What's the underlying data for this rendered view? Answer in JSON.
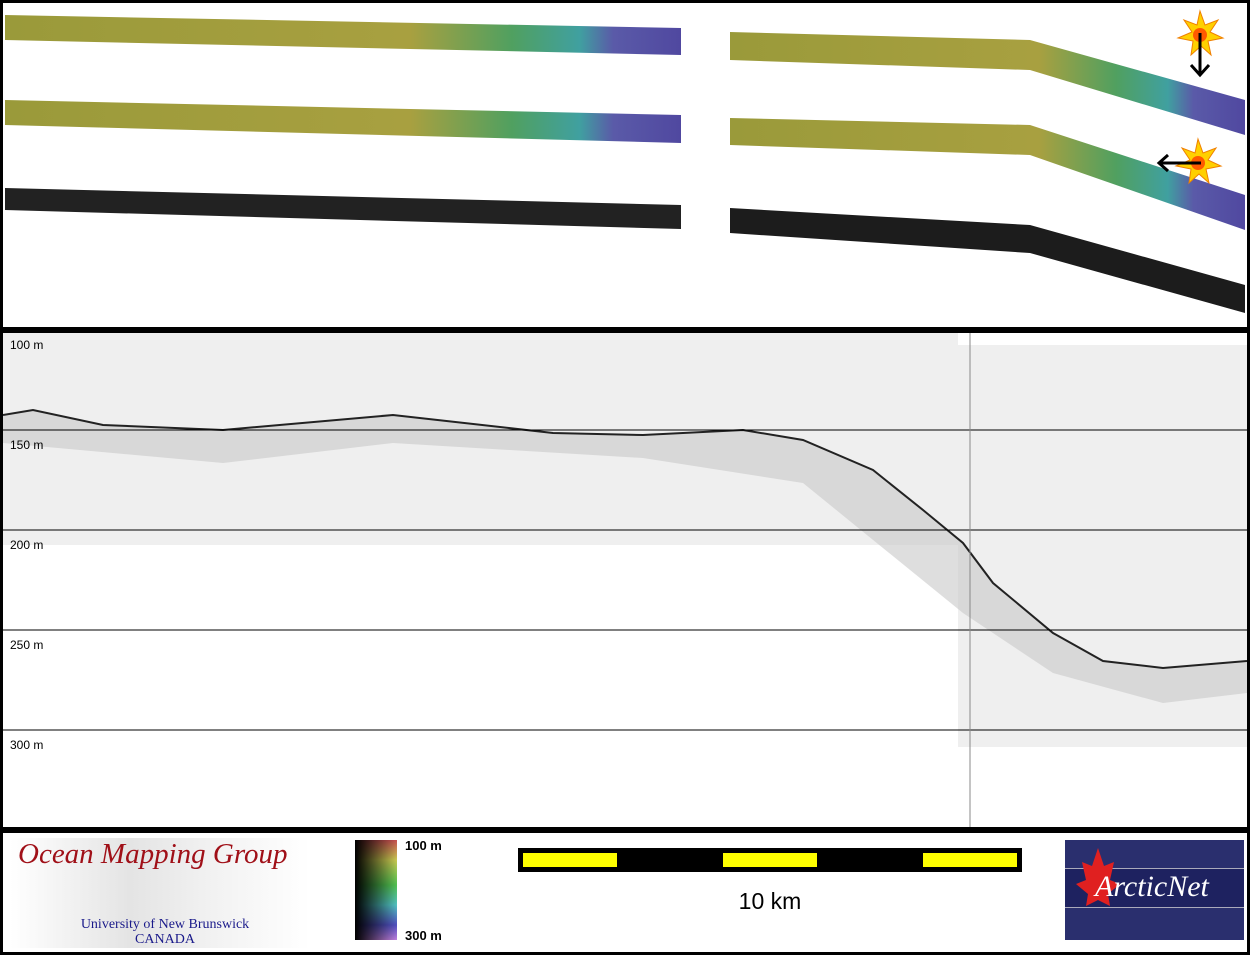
{
  "echogram": {
    "depth_labels": [
      "100 m",
      "150 m",
      "200 m",
      "250 m",
      "300 m"
    ]
  },
  "colorbar": {
    "top_label": "100 m",
    "bottom_label": "300 m"
  },
  "scale_bar": {
    "label": "10 km"
  },
  "logos": {
    "omg": {
      "title": "Ocean Mapping Group",
      "line1": "University of New Brunswick",
      "line2": "CANADA"
    },
    "arcticnet": {
      "title": "ArcticNet"
    }
  },
  "colors": {
    "swath_shallow": "#a8a040",
    "swath_mid": "#40a090",
    "swath_deep": "#5a4fa0",
    "scale_yellow": "#ffff00"
  }
}
